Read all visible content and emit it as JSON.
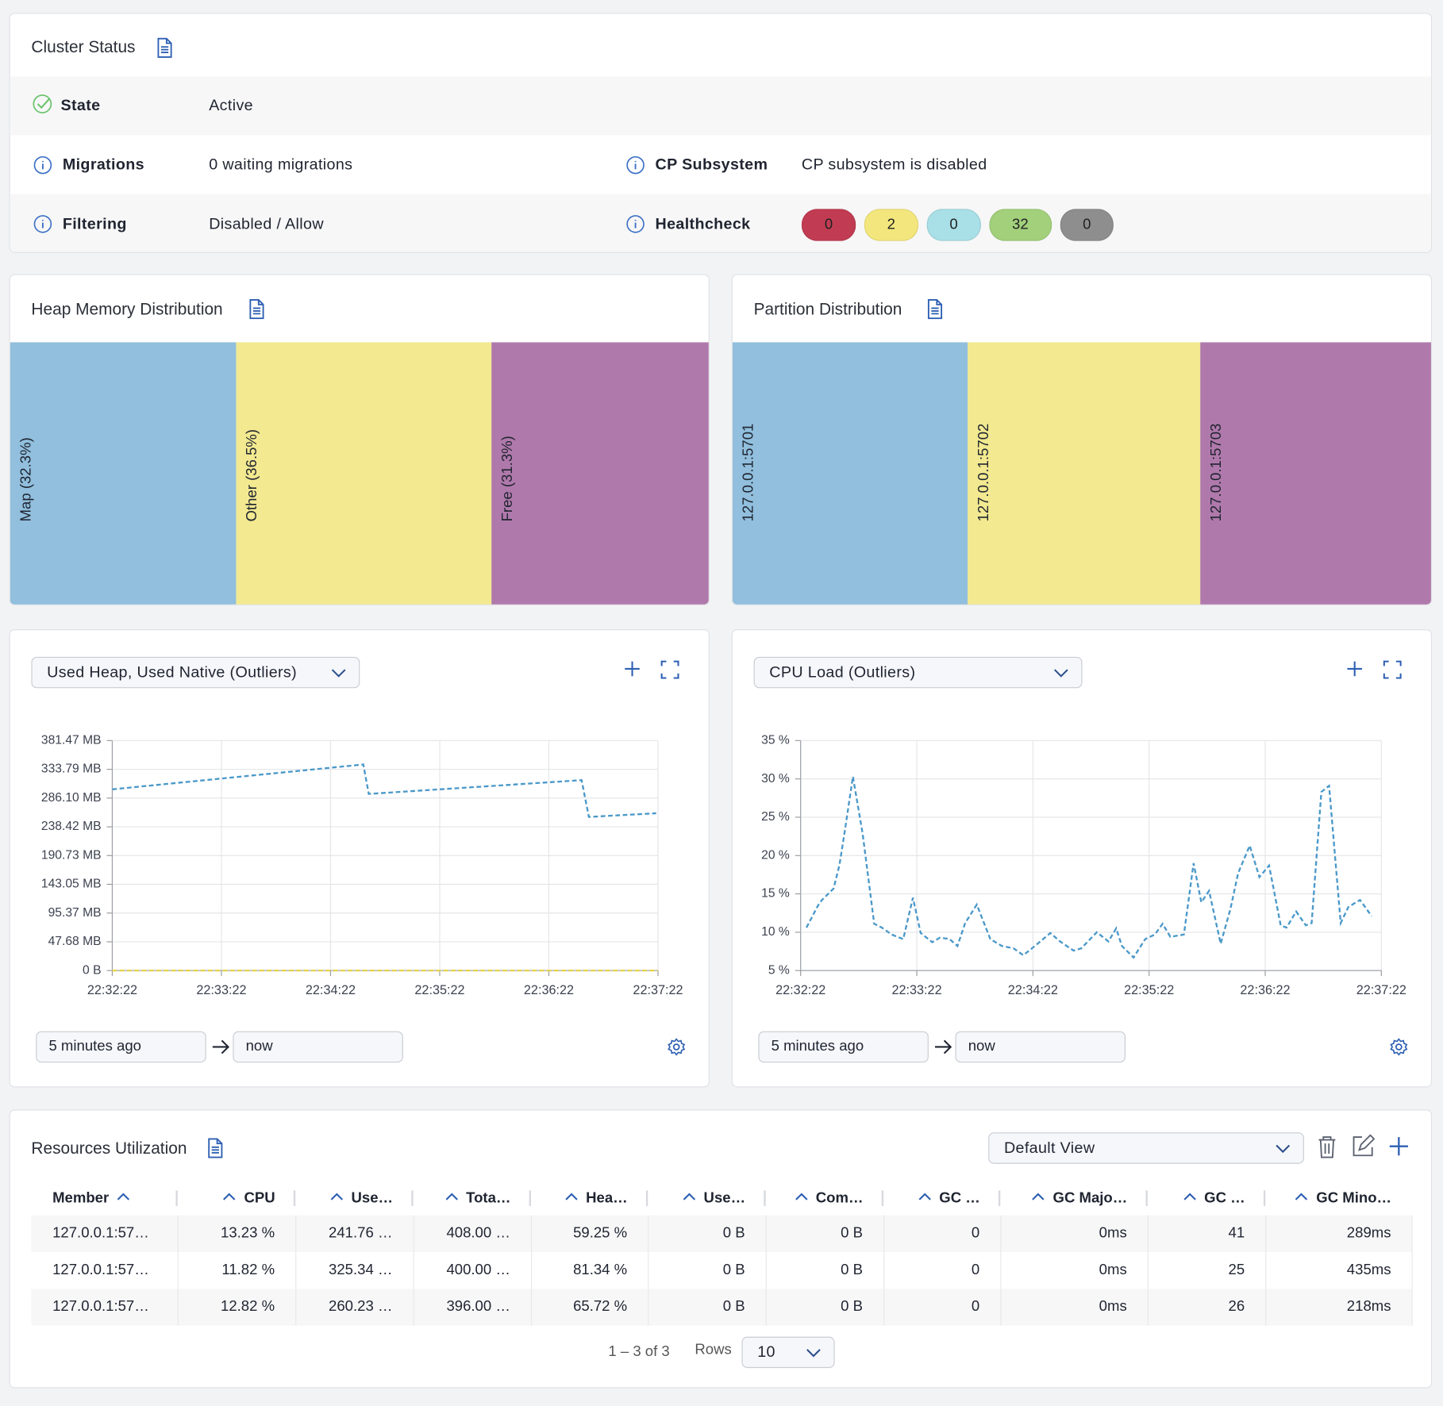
{
  "cluster_status": {
    "title": "Cluster Status",
    "items": [
      {
        "label": "State",
        "value": "Active"
      },
      {
        "label": "Migrations",
        "value": "0 waiting migrations"
      },
      {
        "label": "CP Subsystem",
        "value": "CP subsystem is disabled"
      },
      {
        "label": "Filtering",
        "value": "Disabled / Allow"
      }
    ],
    "healthcheck": {
      "label": "Healthcheck",
      "counts": [
        {
          "value": 0,
          "color": "#c13c52"
        },
        {
          "value": 2,
          "color": "#f3e67c"
        },
        {
          "value": 0,
          "color": "#a9dfe6"
        },
        {
          "value": 32,
          "color": "#a2d07b"
        },
        {
          "value": 0,
          "color": "#8e8e8e"
        }
      ]
    }
  },
  "heap_memory": {
    "title": "Heap Memory Distribution",
    "segments": [
      {
        "label": "Map (32.3%)",
        "value": 32.3,
        "color": "#91bfdd"
      },
      {
        "label": "Other (36.5%)",
        "value": 36.5,
        "color": "#f2e990"
      },
      {
        "label": "Free (31.3%)",
        "value": 31.3,
        "color": "#b079ab"
      }
    ]
  },
  "partition_distribution": {
    "title": "Partition Distribution",
    "segments": [
      {
        "label": "127.0.0.1:5701",
        "value": 91,
        "color": "#91bfdd"
      },
      {
        "label": "127.0.0.1:5702",
        "value": 90,
        "color": "#f2e990"
      },
      {
        "label": "127.0.0.1:5703",
        "value": 90,
        "color": "#b079ab"
      }
    ]
  },
  "charts": [
    {
      "type": "line",
      "metric": "Used Heap, Used Native (Outliers)",
      "grid": true,
      "xlim": [
        81142,
        81442
      ],
      "xticks": [
        {
          "value": 81142,
          "label": "22:32:22"
        },
        {
          "value": 81202,
          "label": "22:33:22"
        },
        {
          "value": 81262,
          "label": "22:34:22"
        },
        {
          "value": 81322,
          "label": "22:35:22"
        },
        {
          "value": 81382,
          "label": "22:36:22"
        },
        {
          "value": 81442,
          "label": "22:37:22"
        }
      ],
      "ylim": [
        0,
        381.47
      ],
      "yticks": [
        {
          "value": 0,
          "label": "0 B"
        },
        {
          "value": 47.68,
          "label": "47.68 MB"
        },
        {
          "value": 95.37,
          "label": "95.37 MB"
        },
        {
          "value": 143.05,
          "label": "143.05 MB"
        },
        {
          "value": 190.73,
          "label": "190.73 MB"
        },
        {
          "value": 238.42,
          "label": "238.42 MB"
        },
        {
          "value": 286.1,
          "label": "286.10 MB"
        },
        {
          "value": 333.79,
          "label": "333.79 MB"
        },
        {
          "value": 381.47,
          "label": "381.47 MB"
        }
      ],
      "series": [
        {
          "color": "#4a98c9",
          "x": [
            81142,
            81280,
            81283,
            81400,
            81404,
            81441
          ],
          "values": [
            300.6,
            341.8,
            293.0,
            315.8,
            254.8,
            260.9
          ]
        },
        {
          "color": "#e8d44d",
          "x": [
            81142,
            81442
          ],
          "values": [
            0,
            0
          ]
        }
      ],
      "range_from": "5 minutes ago",
      "range_to": "now"
    },
    {
      "type": "line",
      "metric": "CPU Load (Outliers)",
      "grid": true,
      "xlim": [
        81142,
        81442
      ],
      "xticks": [
        {
          "value": 81142,
          "label": "22:32:22"
        },
        {
          "value": 81202,
          "label": "22:33:22"
        },
        {
          "value": 81262,
          "label": "22:34:22"
        },
        {
          "value": 81322,
          "label": "22:35:22"
        },
        {
          "value": 81382,
          "label": "22:36:22"
        },
        {
          "value": 81442,
          "label": "22:37:22"
        }
      ],
      "ylim": [
        5,
        35
      ],
      "yticks": [
        {
          "value": 5,
          "label": "5 %"
        },
        {
          "value": 10,
          "label": "10 %"
        },
        {
          "value": 15,
          "label": "15 %"
        },
        {
          "value": 20,
          "label": "20 %"
        },
        {
          "value": 25,
          "label": "25 %"
        },
        {
          "value": 30,
          "label": "30 %"
        },
        {
          "value": 35,
          "label": "35 %"
        }
      ],
      "series": [
        {
          "color": "#4a98c9",
          "x": [
            81145,
            81151,
            81153,
            81159,
            81162,
            81165,
            81169,
            81174,
            81180,
            81184,
            81189,
            81195,
            81200,
            81204,
            81210,
            81214,
            81219,
            81223,
            81227,
            81233,
            81240,
            81246,
            81252,
            81257,
            81263,
            81271,
            81276,
            81283,
            81287,
            81295,
            81301,
            81305,
            81308,
            81314,
            81320,
            81325,
            81329,
            81333,
            81340,
            81345,
            81349,
            81353,
            81359,
            81364,
            81368,
            81374,
            81379,
            81384,
            81390,
            81393,
            81398,
            81403,
            81406,
            81411,
            81415,
            81421,
            81425,
            81431,
            81437
          ],
          "values": [
            10.6,
            13.5,
            14.2,
            15.7,
            18.7,
            23.5,
            30.3,
            22.9,
            11.1,
            10.6,
            9.7,
            9.1,
            14.5,
            9.9,
            8.7,
            9.3,
            9.1,
            8.2,
            11.2,
            13.6,
            9.1,
            8.2,
            7.9,
            7.0,
            8.2,
            9.9,
            8.8,
            7.6,
            7.9,
            10.0,
            8.8,
            10.5,
            8.2,
            6.7,
            9.1,
            9.7,
            11.1,
            9.4,
            9.7,
            19.0,
            13.9,
            15.4,
            8.5,
            13.0,
            17.7,
            21.3,
            17.2,
            18.7,
            10.9,
            10.6,
            12.7,
            10.9,
            11.2,
            28.3,
            29.1,
            11.2,
            13.3,
            14.2,
            12.1
          ]
        }
      ],
      "range_from": "5 minutes ago",
      "range_to": "now"
    }
  ],
  "resources": {
    "title": "Resources Utilization",
    "view": "Default View",
    "columns": [
      "Member",
      "CPU",
      "Use…",
      "Tota…",
      "Hea…",
      "Use…",
      "Com…",
      "GC …",
      "GC Majo…",
      "GC …",
      "GC Mino…"
    ],
    "rows": [
      [
        "127.0.0.1:57…",
        "13.23 %",
        "241.76 …",
        "408.00 …",
        "59.25 %",
        "0 B",
        "0 B",
        "0",
        "0ms",
        "41",
        "289ms"
      ],
      [
        "127.0.0.1:57…",
        "11.82 %",
        "325.34 …",
        "400.00 …",
        "81.34 %",
        "0 B",
        "0 B",
        "0",
        "0ms",
        "25",
        "435ms"
      ],
      [
        "127.0.0.1:57…",
        "12.82 %",
        "260.23 …",
        "396.00 …",
        "65.72 %",
        "0 B",
        "0 B",
        "0",
        "0ms",
        "26",
        "218ms"
      ]
    ],
    "pagination": "1 – 3 of 3",
    "rows_label": "Rows",
    "rows_per_page": 10
  }
}
